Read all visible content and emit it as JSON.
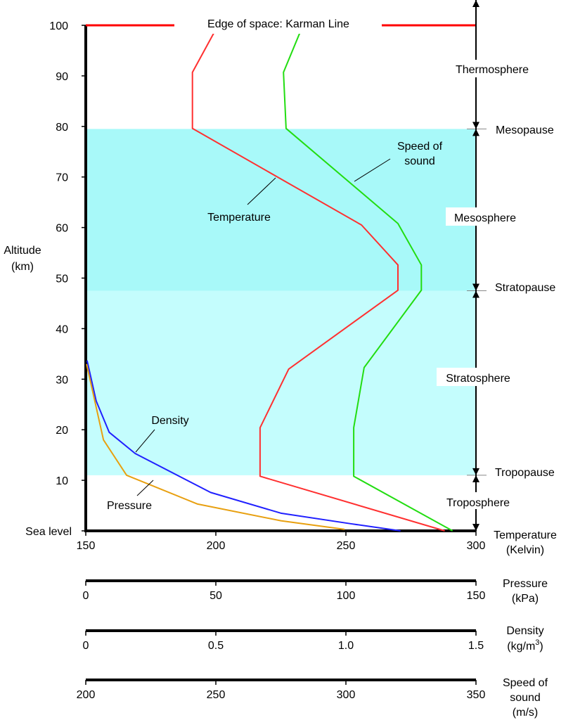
{
  "chart_data": {
    "type": "line",
    "ylabel": [
      "Altitude",
      "(km)"
    ],
    "ylim": [
      0,
      100
    ],
    "yticks": [
      0,
      10,
      20,
      30,
      40,
      50,
      60,
      70,
      80,
      90,
      100
    ],
    "ytick_labels": [
      "Sea level",
      "10",
      "20",
      "30",
      "40",
      "50",
      "60",
      "70",
      "80",
      "90",
      "100"
    ],
    "x_axes": [
      {
        "name": "temperature",
        "label": [
          "Temperature",
          "(Kelvin)"
        ],
        "range": [
          150,
          300
        ],
        "ticks": [
          "150",
          "200",
          "250",
          "300"
        ],
        "tick_values": [
          150,
          200,
          250,
          300
        ]
      },
      {
        "name": "pressure",
        "label": [
          "Pressure",
          "(kPa)"
        ],
        "range": [
          0,
          150
        ],
        "ticks": [
          "0",
          "50",
          "100",
          "150"
        ],
        "tick_values": [
          0,
          50,
          100,
          150
        ]
      },
      {
        "name": "density",
        "label": [
          "Density",
          "(kg/m",
          "3",
          ")"
        ],
        "range": [
          0,
          1.5
        ],
        "ticks": [
          "0",
          "0.5",
          "1.0",
          "1.5"
        ],
        "tick_values": [
          0,
          0.5,
          1.0,
          1.5
        ]
      },
      {
        "name": "speed",
        "label": [
          "Speed of",
          "sound",
          "(m/s)"
        ],
        "range": [
          200,
          350
        ],
        "ticks": [
          "200",
          "250",
          "300",
          "350"
        ],
        "tick_values": [
          200,
          250,
          300,
          350
        ]
      }
    ],
    "series": [
      {
        "name": "Temperature",
        "axis": "temperature",
        "color": "#ff3030",
        "points": [
          [
            288,
            0
          ],
          [
            217,
            10.8
          ],
          [
            217,
            20.4
          ],
          [
            228,
            32
          ],
          [
            270,
            47.6
          ],
          [
            270,
            52.6
          ],
          [
            256,
            60.5
          ],
          [
            191,
            79.6
          ],
          [
            191,
            90.7
          ],
          [
            200,
            99.2
          ]
        ]
      },
      {
        "name": "Speed of sound",
        "axis": "speed",
        "color": "#22dd11",
        "points": [
          [
            341,
            0
          ],
          [
            303,
            10.8
          ],
          [
            303,
            20.4
          ],
          [
            307,
            32.3
          ],
          [
            329,
            47.6
          ],
          [
            329,
            52.6
          ],
          [
            320,
            60.8
          ],
          [
            277,
            79.6
          ],
          [
            276,
            90.7
          ],
          [
            283,
            99.4
          ]
        ]
      },
      {
        "name": "Density",
        "axis": "density",
        "color": "#2020ff",
        "points": [
          [
            1.21,
            0
          ],
          [
            1.02,
            1.4
          ],
          [
            0.75,
            3.5
          ],
          [
            0.48,
            7.6
          ],
          [
            0.19,
            15.3
          ],
          [
            0.09,
            19.5
          ],
          [
            0.04,
            25.7
          ],
          [
            0.005,
            33.7
          ]
        ]
      },
      {
        "name": "Pressure",
        "axis": "pressure",
        "color": "#e8a010",
        "points": [
          [
            99.5,
            0.3
          ],
          [
            75,
            2
          ],
          [
            43,
            5.3
          ],
          [
            15.7,
            11
          ],
          [
            6.8,
            18
          ],
          [
            0.3,
            33
          ]
        ]
      }
    ],
    "bands": [
      {
        "from": 11,
        "to": 47.5,
        "color": "#c4fdfd"
      },
      {
        "from": 47.5,
        "to": 79.5,
        "color": "#a8f9f9"
      }
    ],
    "karman_line": {
      "altitude": 100,
      "label": "Edge of space: Karman Line",
      "color": "#ff0000"
    },
    "layers": [
      {
        "name": "Troposphere",
        "from": 0,
        "to": 11
      },
      {
        "name": "Stratosphere",
        "from": 11,
        "to": 47.5
      },
      {
        "name": "Mesosphere",
        "from": 47.5,
        "to": 79.5
      },
      {
        "name": "Thermosphere",
        "from": 79.5,
        "to": 105
      }
    ],
    "boundaries": [
      {
        "name": "Tropopause",
        "altitude": 11
      },
      {
        "name": "Stratopause",
        "altitude": 47.5
      },
      {
        "name": "Mesopause",
        "altitude": 79.5
      }
    ],
    "annotations": {
      "speed_of_sound": [
        "Speed of",
        "sound"
      ],
      "temperature": "Temperature",
      "density": "Density",
      "pressure": "Pressure"
    }
  }
}
